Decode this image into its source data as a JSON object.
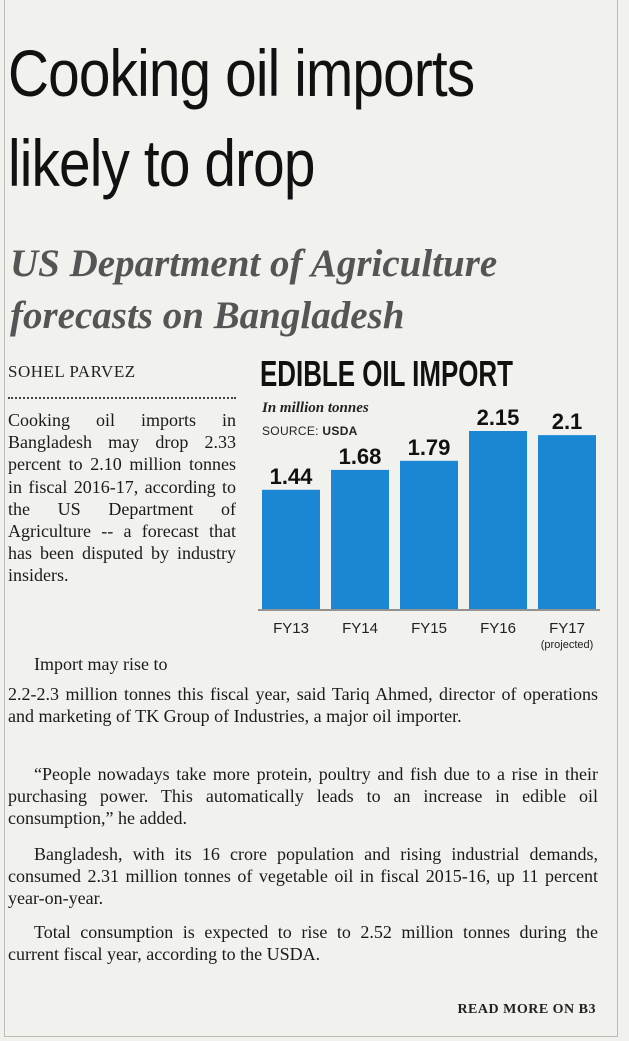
{
  "article": {
    "headline": "Cooking oil imports likely to drop",
    "deck": "US Department of Agriculture forecasts on Bangladesh",
    "byline": "SOHEL PARVEZ",
    "para1": "Cooking oil imports in Bangladesh may drop 2.33 percent to 2.10 million tonnes in fiscal 2016-17, according to the US Department of Agriculture -- a forecast that has been disputed by industry insiders.",
    "para2_start": "Import may rise to",
    "para2_rest": "2.2-2.3 million tonnes this fiscal year, said Tariq Ahmed, director of operations and marketing of TK Group of Industries, a major oil importer.",
    "para3": "“People nowadays take more protein, poultry and fish due to a rise in their purchasing power. This automatically leads to an increase in edible oil consumption,” he added.",
    "para4": "Bangladesh, with its 16 crore population and rising industrial demands, consumed 2.31 million tonnes of vegetable oil in fiscal 2015-16, up 11 percent year-on-year.",
    "para5": "Total consumption is expected to rise to 2.52 million tonnes during the current fiscal year, according to the USDA.",
    "read_more": "READ MORE ON B3"
  },
  "chart_data": {
    "type": "bar",
    "title": "EDIBLE OIL IMPORT",
    "subtitle": "In million tonnes",
    "source_label": "SOURCE:",
    "source": "USDA",
    "categories": [
      "FY13",
      "FY14",
      "FY15",
      "FY16",
      "FY17"
    ],
    "category_notes": [
      "",
      "",
      "",
      "",
      "(projected)"
    ],
    "values": [
      1.44,
      1.68,
      1.79,
      2.15,
      2.1
    ],
    "value_labels": [
      "1.44",
      "1.68",
      "1.79",
      "2.15",
      "2.1"
    ],
    "bar_color": "#1a86d4",
    "ylim": [
      0,
      2.15
    ],
    "grid": false,
    "legend": "none"
  }
}
